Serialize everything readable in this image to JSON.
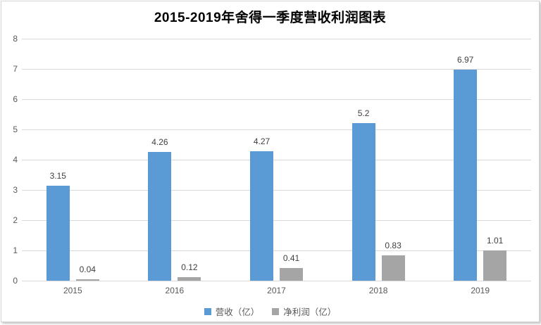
{
  "title": "2015-2019年舍得一季度营收利润图表",
  "chart_data": {
    "type": "bar",
    "title": "2015-2019年舍得一季度营收利润图表",
    "categories": [
      "2015",
      "2016",
      "2017",
      "2018",
      "2019"
    ],
    "series": [
      {
        "name": "营收（亿）",
        "color": "#5b9bd5",
        "values": [
          3.15,
          4.26,
          4.27,
          5.2,
          6.97
        ]
      },
      {
        "name": "净利润（亿）",
        "color": "#a5a5a5",
        "values": [
          0.04,
          0.12,
          0.41,
          0.83,
          1.01
        ]
      }
    ],
    "xlabel": "",
    "ylabel": "",
    "ylim": [
      0,
      8
    ],
    "ytick_step": 1,
    "yticks": [
      0,
      1,
      2,
      3,
      4,
      5,
      6,
      7,
      8
    ],
    "grid": true,
    "data_labels": true,
    "legend_position": "bottom"
  },
  "colors": {
    "revenue_bar": "#5b9bd5",
    "net_profit_bar": "#a5a5a5",
    "gridline": "#d9d9d9",
    "axis_text": "#595959",
    "data_label_text": "#404040",
    "frame_border": "#d4d4d4"
  }
}
